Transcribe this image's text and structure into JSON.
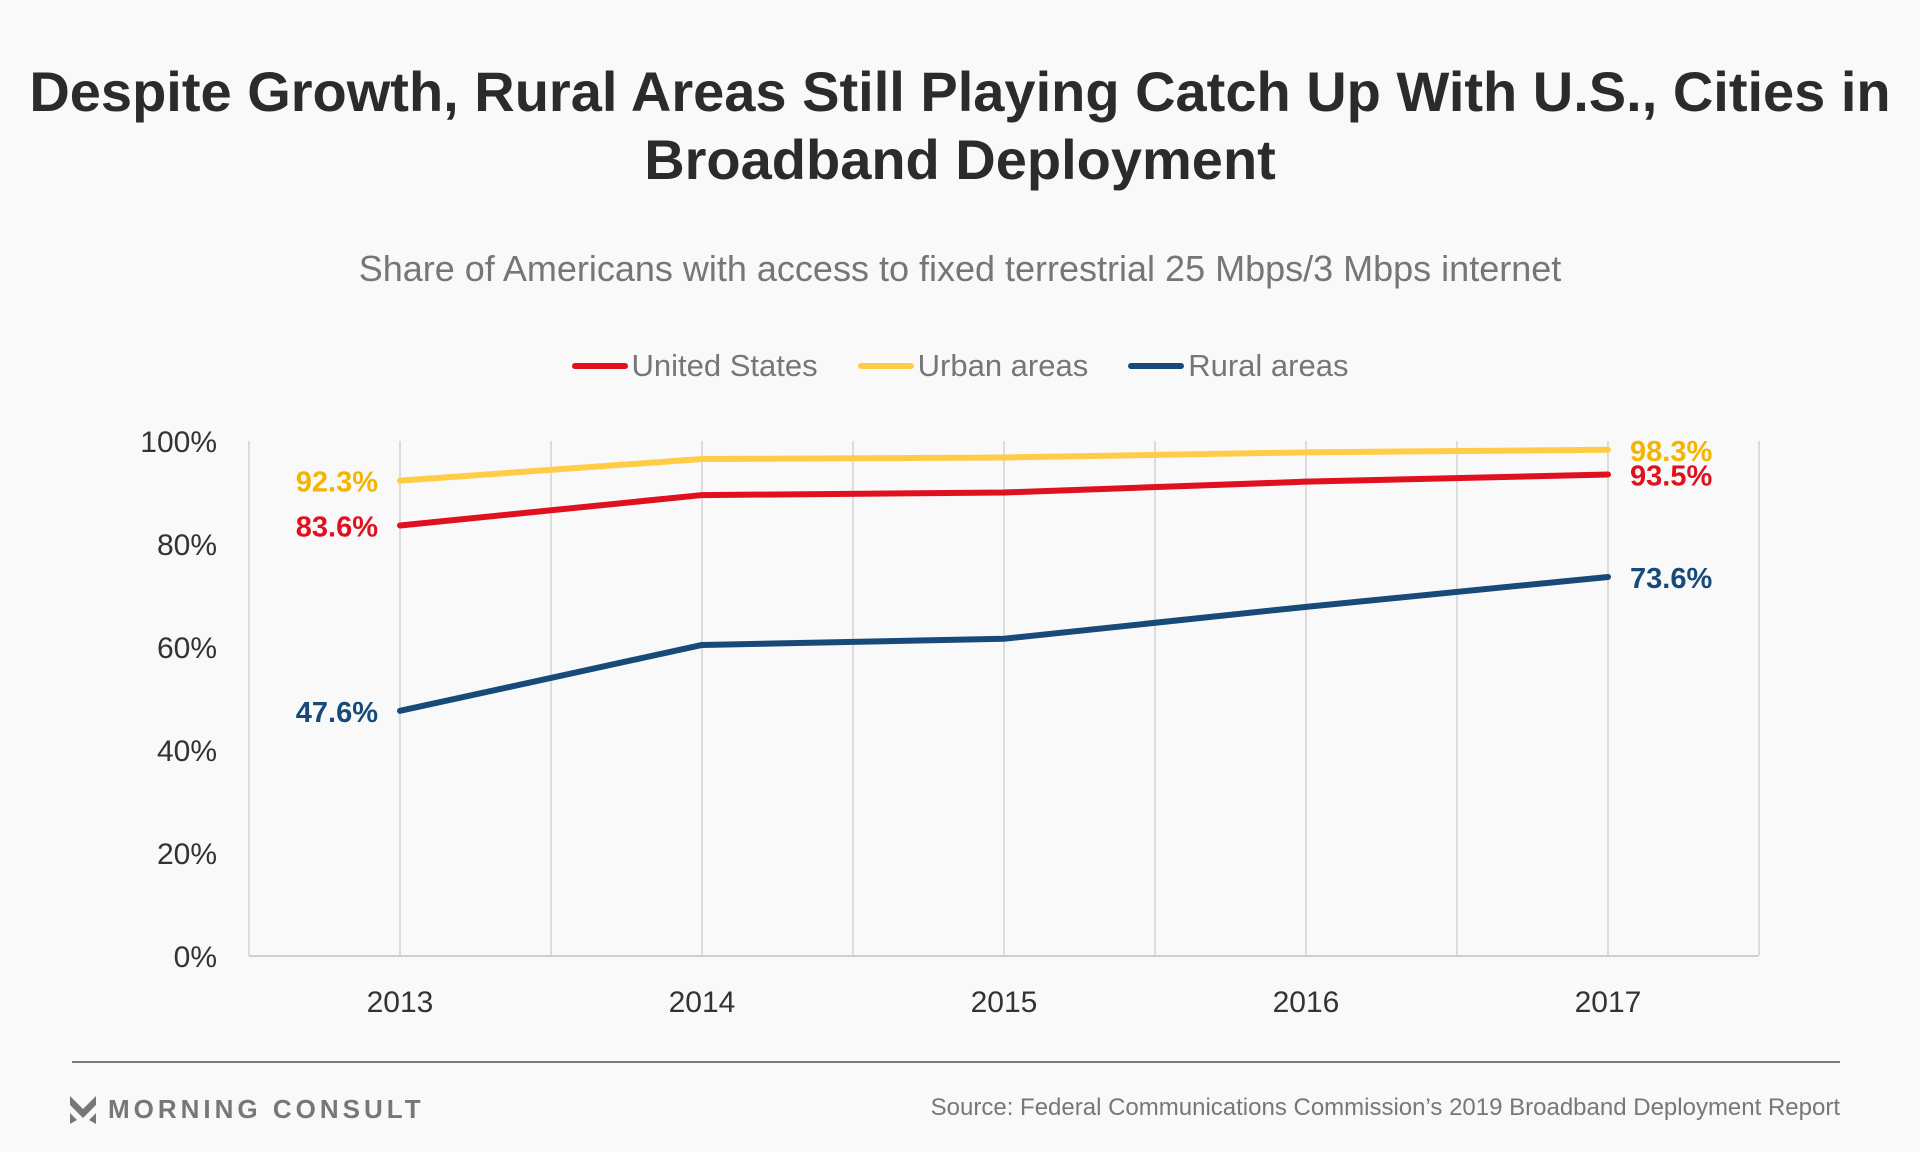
{
  "chart_data": {
    "type": "line",
    "title": "Despite Growth, Rural Areas Still Playing Catch Up With U.S., Cities in Broadband Deployment",
    "subtitle": "Share of Americans with access to fixed terrestrial 25 Mbps/3 Mbps internet",
    "x": [
      "2013",
      "2014",
      "2015",
      "2016",
      "2017"
    ],
    "ylim": [
      0,
      100
    ],
    "yticks": [
      "0%",
      "20%",
      "40%",
      "60%",
      "80%",
      "100%"
    ],
    "grid": "vertical",
    "legend_position": "top",
    "series": [
      {
        "name": "United States",
        "color": "#e0101e",
        "values": [
          83.6,
          89.5,
          90.0,
          92.1,
          93.5
        ],
        "start_label": "83.6%",
        "end_label": "93.5%"
      },
      {
        "name": "Urban areas",
        "color": "#ffcd45",
        "label_color": "#f5b400",
        "values": [
          92.3,
          96.5,
          96.8,
          97.8,
          98.3
        ],
        "start_label": "92.3%",
        "end_label": "98.3%"
      },
      {
        "name": "Rural areas",
        "color": "#174a78",
        "values": [
          47.6,
          60.4,
          61.6,
          67.8,
          73.6
        ],
        "start_label": "47.6%",
        "end_label": "73.6%"
      }
    ]
  },
  "footer": {
    "logo": "MORNING CONSULT",
    "source": "Source: Federal Communications Commission’s 2019 Broadband Deployment Report"
  }
}
